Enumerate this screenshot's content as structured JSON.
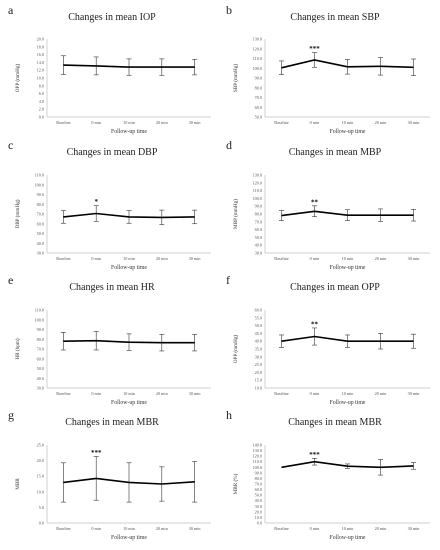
{
  "chart_data": [
    {
      "letter": "a",
      "type": "line",
      "title": "Changes in mean IOP",
      "xlabel": "Follow-up time",
      "ylabel": "OPP (mmHg)",
      "categories": [
        "Baseline",
        "0 min",
        "10 min",
        "20 min",
        "30 min"
      ],
      "yticks": [
        "0.0",
        "2.0",
        "4.0",
        "6.0",
        "8.0",
        "10.0",
        "12.0",
        "14.0",
        "16.0",
        "18.0",
        "20.0"
      ],
      "ylim": [
        0,
        20
      ],
      "series": [
        {
          "values": [
            13.3,
            13.1,
            12.8,
            12.8,
            12.8
          ],
          "errors": [
            2.4,
            2.3,
            2.1,
            2.1,
            2.0
          ]
        }
      ],
      "annotations": []
    },
    {
      "letter": "b",
      "type": "line",
      "title": "Changes in mean SBP",
      "xlabel": "Follow-up time",
      "ylabel": "SBP (mmHg)",
      "categories": [
        "Baseline",
        "0 min",
        "10 min",
        "20 min",
        "30 min"
      ],
      "yticks": [
        "50.0",
        "60.0",
        "70.0",
        "80.0",
        "90.0",
        "100.0",
        "110.0",
        "120.0",
        "130.0"
      ],
      "ylim": [
        50,
        130
      ],
      "series": [
        {
          "values": [
            100.5,
            108.5,
            101.5,
            102.0,
            101.0
          ],
          "errors": [
            7.0,
            7.5,
            7.5,
            9.0,
            8.5
          ]
        }
      ],
      "annotations": [
        {
          "index": 1,
          "text": "***"
        }
      ]
    },
    {
      "letter": "c",
      "type": "line",
      "title": "Changes in mean DBP",
      "xlabel": "Follow-up time",
      "ylabel": "DBP (mmHg)",
      "categories": [
        "Baseline",
        "0 min",
        "10 min",
        "20 min",
        "30 min"
      ],
      "yticks": [
        "30.0",
        "40.0",
        "50.0",
        "60.0",
        "70.0",
        "80.0",
        "90.0",
        "100.0",
        "110.0"
      ],
      "ylim": [
        30,
        110
      ],
      "series": [
        {
          "values": [
            67.0,
            70.5,
            67.0,
            66.5,
            67.0
          ],
          "errors": [
            6.5,
            8.0,
            6.5,
            7.5,
            7.0
          ]
        }
      ],
      "annotations": [
        {
          "index": 1,
          "text": "*"
        }
      ]
    },
    {
      "letter": "d",
      "type": "line",
      "title": "Changes in mean MBP",
      "xlabel": "Follow-up time",
      "ylabel": "MBP (mmHg)",
      "categories": [
        "Baseline",
        "0 min",
        "10 min",
        "20 min",
        "30 min"
      ],
      "yticks": [
        "30.0",
        "40.0",
        "50.0",
        "60.0",
        "70.0",
        "80.0",
        "90.0",
        "100.0",
        "110.0",
        "120.0",
        "130.0"
      ],
      "ylim": [
        30,
        130
      ],
      "series": [
        {
          "values": [
            78.0,
            83.5,
            78.5,
            78.5,
            78.5
          ],
          "errors": [
            6.5,
            7.0,
            7.0,
            8.0,
            7.5
          ]
        }
      ],
      "annotations": [
        {
          "index": 1,
          "text": "**"
        }
      ]
    },
    {
      "letter": "e",
      "type": "line",
      "title": "Changes in mean HR",
      "xlabel": "Follow-up time",
      "ylabel": "HR (bpm)",
      "categories": [
        "Baseline",
        "0 min",
        "10 min",
        "20 min",
        "30 min"
      ],
      "yticks": [
        "30.0",
        "40.0",
        "50.0",
        "60.0",
        "70.0",
        "80.0",
        "90.0",
        "100.0",
        "110.0"
      ],
      "ylim": [
        30,
        110
      ],
      "series": [
        {
          "values": [
            78.0,
            78.5,
            77.0,
            76.5,
            76.5
          ],
          "errors": [
            9.0,
            9.5,
            8.5,
            8.5,
            8.5
          ]
        }
      ],
      "annotations": []
    },
    {
      "letter": "f",
      "type": "line",
      "title": "Changes in mean OPP",
      "xlabel": "Follow-up time",
      "ylabel": "OPP (mmHg)",
      "categories": [
        "Baseline",
        "0 min",
        "10 min",
        "20 min",
        "30 min"
      ],
      "yticks": [
        "10.0",
        "15.0",
        "20.0",
        "25.0",
        "30.0",
        "35.0",
        "40.0",
        "45.0",
        "50.0",
        "55.0",
        "60.0"
      ],
      "ylim": [
        10,
        60
      ],
      "series": [
        {
          "values": [
            40.0,
            43.0,
            40.0,
            40.0,
            40.0
          ],
          "errors": [
            4.0,
            5.5,
            4.0,
            5.0,
            4.5
          ]
        }
      ],
      "annotations": [
        {
          "index": 1,
          "text": "**"
        }
      ]
    },
    {
      "letter": "g",
      "type": "line",
      "title": "Changes in mean MBR",
      "xlabel": "Follow-up time",
      "ylabel": "MBR",
      "categories": [
        "Baseline",
        "0 min",
        "10 min",
        "20 min",
        "30 min"
      ],
      "yticks": [
        "0.0",
        "5.0",
        "10.0",
        "15.0",
        "20.0",
        "25.0"
      ],
      "ylim": [
        0,
        25
      ],
      "series": [
        {
          "values": [
            13.0,
            14.3,
            13.0,
            12.5,
            13.2
          ],
          "errors": [
            6.3,
            7.0,
            6.3,
            5.5,
            6.5
          ]
        }
      ],
      "annotations": [
        {
          "index": 1,
          "text": "***"
        }
      ]
    },
    {
      "letter": "h",
      "type": "line",
      "title": "Changes in mean MBR",
      "xlabel": "Follow-up time",
      "ylabel": "MBR (%)",
      "categories": [
        "Baseline",
        "0 min",
        "10 min",
        "20 min",
        "30 min"
      ],
      "yticks": [
        "0.0",
        "10.0",
        "20.0",
        "30.0",
        "40.0",
        "50.0",
        "60.0",
        "70.0",
        "80.0",
        "90.0",
        "100.0",
        "110.0",
        "120.0",
        "130.0",
        "140.0"
      ],
      "ylim": [
        0,
        140
      ],
      "series": [
        {
          "values": [
            100.0,
            110.0,
            102.0,
            100.0,
            102.5
          ],
          "errors": [
            0.0,
            6.0,
            4.0,
            14.0,
            6.0
          ]
        }
      ],
      "annotations": [
        {
          "index": 1,
          "text": "***"
        }
      ]
    }
  ]
}
